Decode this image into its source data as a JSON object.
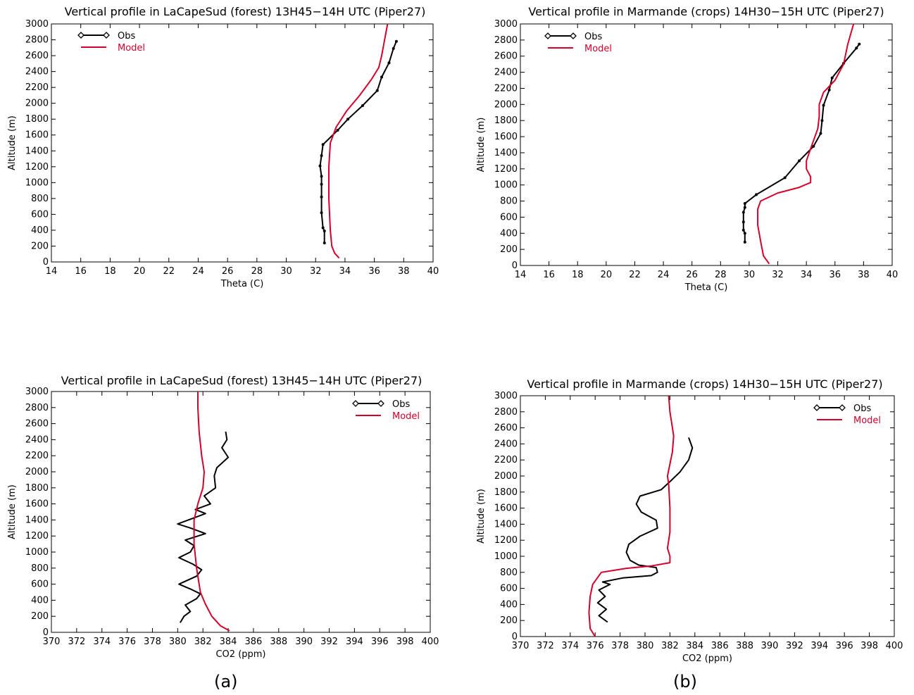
{
  "colors": {
    "obs": "#000000",
    "model": "#d4002a"
  },
  "captions": [
    "(a)",
    "(b)"
  ],
  "chart_data": [
    {
      "type": "line",
      "title": "Vertical profile in LaCapeSud (forest) 13H45−14H UTC (Piper27)",
      "xlabel": "Theta (C)",
      "ylabel": "Altitude (m)",
      "xlim": [
        14,
        40
      ],
      "ylim": [
        0,
        3000
      ],
      "xticks": [
        14,
        16,
        18,
        20,
        22,
        24,
        26,
        28,
        30,
        32,
        34,
        36,
        38,
        40
      ],
      "yticks": [
        0,
        200,
        400,
        600,
        800,
        1000,
        1200,
        1400,
        1600,
        1800,
        2000,
        2200,
        2400,
        2600,
        2800,
        3000
      ],
      "legend_position": "top-left",
      "series": [
        {
          "name": "Obs",
          "kind": "obs",
          "markers": true,
          "points": [
            [
              32.6,
              240
            ],
            [
              32.6,
              390
            ],
            [
              32.5,
              430
            ],
            [
              32.4,
              620
            ],
            [
              32.4,
              820
            ],
            [
              32.4,
              980
            ],
            [
              32.4,
              1080
            ],
            [
              32.3,
              1210
            ],
            [
              32.4,
              1340
            ],
            [
              32.5,
              1480
            ],
            [
              33.5,
              1660
            ],
            [
              34.2,
              1800
            ],
            [
              35.2,
              1970
            ],
            [
              36.2,
              2160
            ],
            [
              36.5,
              2330
            ],
            [
              37.0,
              2510
            ],
            [
              37.3,
              2690
            ],
            [
              37.5,
              2780
            ]
          ]
        },
        {
          "name": "Model",
          "kind": "model",
          "markers": false,
          "points": [
            [
              33.6,
              50
            ],
            [
              33.3,
              110
            ],
            [
              33.1,
              200
            ],
            [
              33.0,
              400
            ],
            [
              32.9,
              800
            ],
            [
              32.9,
              1200
            ],
            [
              33.0,
              1500
            ],
            [
              33.4,
              1700
            ],
            [
              34.1,
              1900
            ],
            [
              35.0,
              2100
            ],
            [
              35.8,
              2300
            ],
            [
              36.3,
              2450
            ],
            [
              36.5,
              2600
            ],
            [
              36.7,
              2800
            ],
            [
              36.9,
              3000
            ]
          ]
        }
      ]
    },
    {
      "type": "line",
      "title": "Vertical profile in Marmande (crops) 14H30−15H UTC (Piper27)",
      "xlabel": "Theta (C)",
      "ylabel": "Altitude (m)",
      "xlim": [
        14,
        40
      ],
      "ylim": [
        0,
        3000
      ],
      "xticks": [
        14,
        16,
        18,
        20,
        22,
        24,
        26,
        28,
        30,
        32,
        34,
        36,
        38,
        40
      ],
      "yticks": [
        0,
        200,
        400,
        600,
        800,
        1000,
        1200,
        1400,
        1600,
        1800,
        2000,
        2200,
        2400,
        2600,
        2800,
        3000
      ],
      "legend_position": "top-left",
      "series": [
        {
          "name": "Obs",
          "kind": "obs",
          "markers": true,
          "points": [
            [
              29.7,
              290
            ],
            [
              29.7,
              400
            ],
            [
              29.6,
              440
            ],
            [
              29.6,
              540
            ],
            [
              29.6,
              660
            ],
            [
              29.7,
              720
            ],
            [
              29.7,
              770
            ],
            [
              30.5,
              880
            ],
            [
              32.5,
              1090
            ],
            [
              33.5,
              1300
            ],
            [
              34.5,
              1480
            ],
            [
              35.0,
              1640
            ],
            [
              35.1,
              1800
            ],
            [
              35.2,
              1990
            ],
            [
              35.6,
              2180
            ],
            [
              35.8,
              2330
            ],
            [
              36.6,
              2510
            ],
            [
              37.5,
              2700
            ],
            [
              37.7,
              2750
            ]
          ]
        },
        {
          "name": "Model",
          "kind": "model",
          "markers": false,
          "points": [
            [
              31.4,
              20
            ],
            [
              31.0,
              120
            ],
            [
              30.8,
              300
            ],
            [
              30.6,
              500
            ],
            [
              30.6,
              700
            ],
            [
              30.8,
              800
            ],
            [
              32.0,
              900
            ],
            [
              33.5,
              970
            ],
            [
              34.3,
              1030
            ],
            [
              34.3,
              1100
            ],
            [
              34.0,
              1200
            ],
            [
              34.0,
              1300
            ],
            [
              34.3,
              1450
            ],
            [
              34.8,
              1700
            ],
            [
              34.9,
              1850
            ],
            [
              34.9,
              2000
            ],
            [
              35.2,
              2150
            ],
            [
              36.0,
              2300
            ],
            [
              36.6,
              2500
            ],
            [
              36.9,
              2750
            ],
            [
              37.3,
              3000
            ]
          ]
        }
      ]
    },
    {
      "type": "line",
      "title": "Vertical profile in LaCapeSud (forest) 13H45−14H UTC (Piper27)",
      "xlabel": "CO2 (ppm)",
      "ylabel": "Altitude (m)",
      "xlim": [
        370,
        400
      ],
      "ylim": [
        0,
        3000
      ],
      "xticks": [
        370,
        372,
        374,
        376,
        378,
        380,
        382,
        384,
        386,
        388,
        390,
        392,
        394,
        396,
        398,
        400
      ],
      "yticks": [
        0,
        200,
        400,
        600,
        800,
        1000,
        1200,
        1400,
        1600,
        1800,
        2000,
        2200,
        2400,
        2600,
        2800,
        3000
      ],
      "legend_position": "top-right",
      "series": [
        {
          "name": "Obs",
          "kind": "obs",
          "markers": false,
          "points": [
            [
              380.2,
              120
            ],
            [
              380.5,
              200
            ],
            [
              381.0,
              260
            ],
            [
              380.6,
              340
            ],
            [
              381.5,
              420
            ],
            [
              381.8,
              480
            ],
            [
              381.0,
              540
            ],
            [
              380.1,
              600
            ],
            [
              381.5,
              700
            ],
            [
              381.9,
              780
            ],
            [
              381.2,
              850
            ],
            [
              380.1,
              930
            ],
            [
              381.0,
              1000
            ],
            [
              381.3,
              1080
            ],
            [
              380.6,
              1150
            ],
            [
              382.2,
              1230
            ],
            [
              381.0,
              1300
            ],
            [
              380.0,
              1350
            ],
            [
              381.2,
              1420
            ],
            [
              382.2,
              1480
            ],
            [
              381.4,
              1530
            ],
            [
              382.6,
              1600
            ],
            [
              382.1,
              1700
            ],
            [
              383.0,
              1800
            ],
            [
              382.9,
              1950
            ],
            [
              383.1,
              2050
            ],
            [
              384.0,
              2180
            ],
            [
              383.5,
              2300
            ],
            [
              383.9,
              2400
            ],
            [
              383.8,
              2500
            ]
          ]
        },
        {
          "name": "Model",
          "kind": "model",
          "markers": false,
          "points": [
            [
              384.1,
              20
            ],
            [
              383.4,
              80
            ],
            [
              382.7,
              200
            ],
            [
              382.2,
              350
            ],
            [
              381.8,
              500
            ],
            [
              381.5,
              800
            ],
            [
              381.3,
              1100
            ],
            [
              381.3,
              1400
            ],
            [
              381.6,
              1600
            ],
            [
              382.0,
              1800
            ],
            [
              382.1,
              2000
            ],
            [
              381.9,
              2200
            ],
            [
              381.7,
              2500
            ],
            [
              381.6,
              2800
            ],
            [
              381.6,
              3000
            ]
          ]
        }
      ]
    },
    {
      "type": "line",
      "title": "Vertical profile in Marmande (crops) 14H30−15H UTC (Piper27)",
      "xlabel": "CO2 (ppm)",
      "ylabel": "Altitude (m)",
      "xlim": [
        370,
        400
      ],
      "ylim": [
        0,
        3000
      ],
      "xticks": [
        370,
        372,
        374,
        376,
        378,
        380,
        382,
        384,
        386,
        388,
        390,
        392,
        394,
        396,
        398,
        400
      ],
      "yticks": [
        0,
        200,
        400,
        600,
        800,
        1000,
        1200,
        1400,
        1600,
        1800,
        2000,
        2200,
        2400,
        2600,
        2800,
        3000
      ],
      "legend_position": "top-right",
      "series": [
        {
          "name": "Obs",
          "kind": "obs",
          "markers": false,
          "points": [
            [
              377.0,
              180
            ],
            [
              376.3,
              260
            ],
            [
              376.9,
              340
            ],
            [
              376.2,
              420
            ],
            [
              376.8,
              500
            ],
            [
              376.3,
              580
            ],
            [
              377.2,
              650
            ],
            [
              376.6,
              680
            ],
            [
              378.2,
              730
            ],
            [
              380.5,
              760
            ],
            [
              381.0,
              800
            ],
            [
              380.9,
              860
            ],
            [
              379.5,
              890
            ],
            [
              378.8,
              950
            ],
            [
              378.5,
              1050
            ],
            [
              378.7,
              1150
            ],
            [
              379.6,
              1250
            ],
            [
              381.0,
              1350
            ],
            [
              380.9,
              1450
            ],
            [
              379.7,
              1550
            ],
            [
              379.3,
              1650
            ],
            [
              379.6,
              1750
            ],
            [
              381.3,
              1830
            ],
            [
              382.0,
              1930
            ],
            [
              382.8,
              2050
            ],
            [
              383.5,
              2200
            ],
            [
              383.8,
              2350
            ],
            [
              383.5,
              2480
            ]
          ]
        },
        {
          "name": "Model",
          "kind": "model",
          "markers": false,
          "points": [
            [
              376.0,
              0
            ],
            [
              375.6,
              100
            ],
            [
              375.5,
              300
            ],
            [
              375.6,
              500
            ],
            [
              375.8,
              650
            ],
            [
              376.5,
              800
            ],
            [
              378.5,
              850
            ],
            [
              380.5,
              880
            ],
            [
              382.0,
              920
            ],
            [
              382.0,
              1000
            ],
            [
              381.8,
              1100
            ],
            [
              382.0,
              1300
            ],
            [
              382.0,
              1600
            ],
            [
              381.9,
              1900
            ],
            [
              381.8,
              2000
            ],
            [
              382.2,
              2300
            ],
            [
              382.3,
              2500
            ],
            [
              382.0,
              2800
            ],
            [
              381.9,
              3000
            ]
          ]
        }
      ]
    }
  ]
}
